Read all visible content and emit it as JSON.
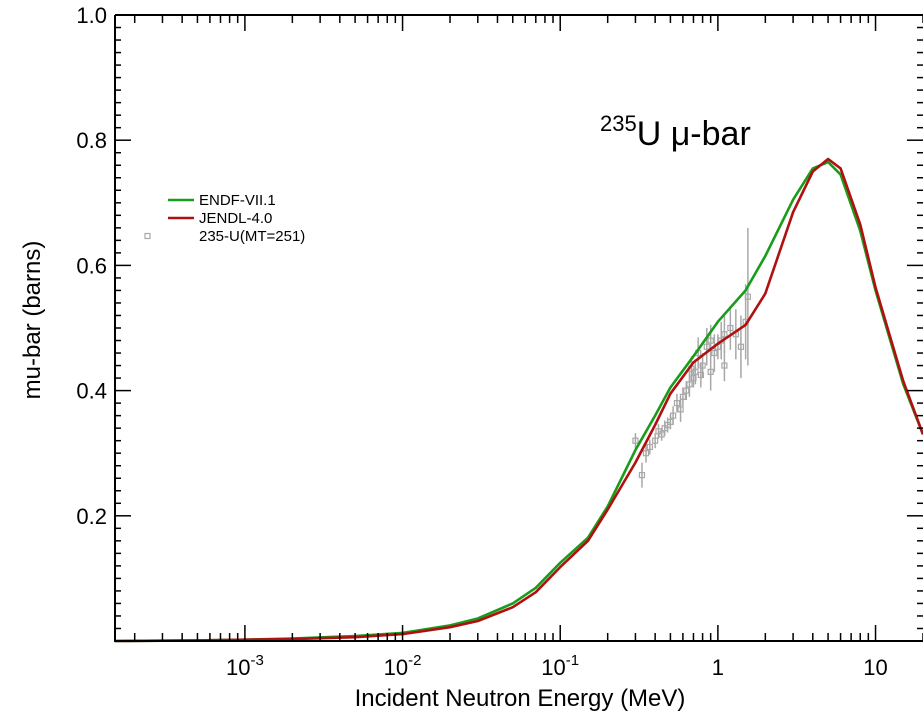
{
  "chart_data": {
    "type": "line",
    "title": "",
    "xlabel": "Incident Neutron Energy (MeV)",
    "ylabel": "mu-bar (barns)",
    "xscale": "log",
    "xlim": [
      0.00015,
      20
    ],
    "ylim": [
      0,
      1.0
    ],
    "grid": false,
    "legend_position": "upper-left",
    "x_tick_labels": [
      {
        "value": 0.001,
        "base": "10",
        "exp": "-3"
      },
      {
        "value": 0.01,
        "base": "10",
        "exp": "-2"
      },
      {
        "value": 0.1,
        "base": "10",
        "exp": "-1"
      },
      {
        "value": 1,
        "base": "1",
        "exp": ""
      },
      {
        "value": 10,
        "base": "10",
        "exp": ""
      }
    ],
    "y_tick_labels": [
      "0.2",
      "0.4",
      "0.6",
      "0.8",
      "1.0"
    ],
    "annotation": {
      "sup": "235",
      "main": "U μ-bar"
    },
    "series": [
      {
        "name": "ENDF-VII.1",
        "color": "#1a9c1a",
        "x": [
          0.00015,
          0.0005,
          0.001,
          0.002,
          0.005,
          0.01,
          0.02,
          0.03,
          0.05,
          0.07,
          0.1,
          0.15,
          0.2,
          0.3,
          0.4,
          0.5,
          0.7,
          1.0,
          1.5,
          2.0,
          3.0,
          4.0,
          5.0,
          6.0,
          8.0,
          10.0,
          15.0,
          20.0
        ],
        "y": [
          0.0,
          0.001,
          0.002,
          0.004,
          0.008,
          0.013,
          0.025,
          0.036,
          0.06,
          0.085,
          0.125,
          0.165,
          0.215,
          0.305,
          0.36,
          0.405,
          0.455,
          0.51,
          0.56,
          0.615,
          0.705,
          0.755,
          0.765,
          0.745,
          0.655,
          0.56,
          0.41,
          0.33
        ]
      },
      {
        "name": "JENDL-4.0",
        "color": "#b01010",
        "x": [
          0.00015,
          0.0005,
          0.001,
          0.002,
          0.005,
          0.01,
          0.02,
          0.03,
          0.05,
          0.07,
          0.1,
          0.15,
          0.2,
          0.3,
          0.4,
          0.5,
          0.7,
          1.0,
          1.5,
          2.0,
          3.0,
          4.0,
          5.0,
          6.0,
          8.0,
          10.0,
          15.0,
          20.0
        ],
        "y": [
          0.0,
          0.001,
          0.002,
          0.003,
          0.006,
          0.011,
          0.022,
          0.032,
          0.054,
          0.078,
          0.118,
          0.16,
          0.21,
          0.285,
          0.345,
          0.395,
          0.445,
          0.475,
          0.505,
          0.555,
          0.685,
          0.75,
          0.77,
          0.755,
          0.665,
          0.565,
          0.415,
          0.33
        ]
      }
    ],
    "experimental": {
      "name": "235-U(MT=251)",
      "color": "#a8a8a8",
      "points": [
        [
          0.3,
          0.32,
          0.012
        ],
        [
          0.33,
          0.265,
          0.02
        ],
        [
          0.35,
          0.3,
          0.015
        ],
        [
          0.37,
          0.31,
          0.012
        ],
        [
          0.4,
          0.32,
          0.012
        ],
        [
          0.42,
          0.335,
          0.012
        ],
        [
          0.44,
          0.33,
          0.01
        ],
        [
          0.46,
          0.34,
          0.012
        ],
        [
          0.48,
          0.345,
          0.012
        ],
        [
          0.5,
          0.35,
          0.012
        ],
        [
          0.52,
          0.36,
          0.015
        ],
        [
          0.55,
          0.38,
          0.015
        ],
        [
          0.58,
          0.37,
          0.02
        ],
        [
          0.6,
          0.39,
          0.015
        ],
        [
          0.63,
          0.4,
          0.015
        ],
        [
          0.66,
          0.41,
          0.02
        ],
        [
          0.7,
          0.42,
          0.015
        ],
        [
          0.72,
          0.43,
          0.02
        ],
        [
          0.75,
          0.46,
          0.025
        ],
        [
          0.78,
          0.425,
          0.02
        ],
        [
          0.8,
          0.44,
          0.02
        ],
        [
          0.85,
          0.47,
          0.03
        ],
        [
          0.9,
          0.48,
          0.025
        ],
        [
          0.95,
          0.46,
          0.03
        ],
        [
          1.0,
          0.47,
          0.02
        ],
        [
          1.05,
          0.48,
          0.03
        ],
        [
          1.1,
          0.49,
          0.03
        ],
        [
          1.2,
          0.5,
          0.035
        ],
        [
          1.3,
          0.49,
          0.04
        ],
        [
          1.4,
          0.47,
          0.05
        ],
        [
          1.5,
          0.51,
          0.06
        ],
        [
          1.55,
          0.55,
          0.11
        ],
        [
          1.1,
          0.44,
          0.025
        ],
        [
          0.68,
          0.435,
          0.02
        ],
        [
          0.9,
          0.43,
          0.03
        ]
      ]
    }
  }
}
